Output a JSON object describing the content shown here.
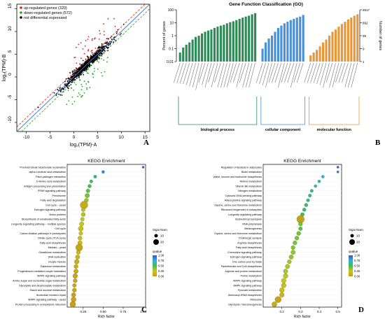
{
  "panels": [
    {
      "letter": "A"
    },
    {
      "letter": "B"
    },
    {
      "letter": "C"
    },
    {
      "letter": "D"
    }
  ],
  "chart_data": [
    {
      "id": "A",
      "type": "scatter",
      "title": "",
      "xlabel": "log₂(TPM)-A",
      "ylabel": "log₂(TPM)-B",
      "xlim": [
        -12,
        16
      ],
      "ylim": [
        -12,
        16
      ],
      "x_ticks": [
        "-10",
        "-5",
        "0",
        "5",
        "10",
        "15"
      ],
      "y_ticks": [
        "-10",
        "-5",
        "0",
        "5",
        "10",
        "15"
      ],
      "legend_position": "top-left",
      "series": [
        {
          "name": "up-regulated genes (320)",
          "color": "#e0201b"
        },
        {
          "name": "down-regulated genes (572)",
          "color": "#2ca02c"
        },
        {
          "name": "not differential expressed",
          "color": "#000000"
        }
      ],
      "diagonal": {
        "x": [
          -12,
          16
        ],
        "y": [
          -12,
          16
        ]
      },
      "fold_lines": {
        "offset": 1
      }
    },
    {
      "id": "B",
      "type": "bar",
      "title": "Gene Function Classification (GO)",
      "ylabel": "Percent of genes",
      "ylabel_right": "Number of genes",
      "y_scale": "log",
      "ylim": [
        0.01,
        100
      ],
      "y_ticks": [
        "100",
        "10",
        "1",
        "0.1",
        "0.01"
      ],
      "right_ticks": [
        "8917",
        "892",
        "89",
        "9",
        "1"
      ],
      "groups": [
        {
          "name": "biological process",
          "color": "#2e8b57",
          "values": [
            0.05,
            0.12,
            0.2,
            0.3,
            0.5,
            0.8,
            1,
            1.5,
            2,
            2.5,
            3,
            4,
            5,
            6,
            7,
            9,
            11,
            13,
            16,
            20,
            25,
            30,
            35,
            45,
            55
          ]
        },
        {
          "name": "cellular component",
          "color": "#4a90d9",
          "values": [
            0.1,
            0.3,
            0.6,
            1,
            2,
            4,
            6,
            9,
            12,
            16,
            20,
            25,
            30,
            40
          ]
        },
        {
          "name": "molecular function",
          "color": "#e8963a",
          "values": [
            0.03,
            0.05,
            0.08,
            0.15,
            0.3,
            0.5,
            1,
            2,
            3,
            5,
            8,
            12,
            18,
            25,
            35,
            45
          ]
        }
      ]
    },
    {
      "id": "C",
      "type": "scatter",
      "title": "KEGG Enrichment",
      "xlabel": "Rich factor",
      "x_ticks": [
        "0.25",
        "0.50",
        "0.75",
        "1.00"
      ],
      "xlim": [
        0.05,
        1.03
      ],
      "categories": [
        "Proximal tubule bicarbonate reclamation",
        "alpha-Linolenic acid metabolism",
        "Plant pathogen interaction",
        "D-Amino acid metabolism",
        "Antigen processing and presentation",
        "PPAR signaling pathway",
        "Peroxisome",
        "Fatty acid degradation",
        "Cell cycle – yeast",
        "Estrogen signaling pathway",
        "Motor proteins",
        "Biosynthesis of unsaturated fatty acids",
        "Longevity regulating pathway – multiple species",
        "Cell cycle",
        "Carbon fixation pathways in prokaryotes",
        "Citrate cycle (TCA cycle)",
        "Fatty acid biosynthesis",
        "Meiosis – yeast",
        "Glutathione metabolism",
        "DNA replication",
        "Oocyte meiosis",
        "Galactose metabolism",
        "Progesterone-mediated oocyte maturation",
        "MAPK signaling pathway",
        "Amino sugar and nucleotide sugar metabolism",
        "Glyoxylate and dicarboxylate metabolism",
        "Starch and sucrose metabolism",
        "Nucleotide excision repair",
        "MAPK signaling pathway – yeast",
        "Protein processing in endoplasmic reticulum"
      ],
      "values": [
        1.0,
        0.5,
        0.4,
        0.35,
        0.33,
        0.31,
        0.3,
        0.29,
        0.26,
        0.25,
        0.25,
        0.24,
        0.23,
        0.22,
        0.22,
        0.21,
        0.21,
        0.2,
        0.19,
        0.18,
        0.17,
        0.16,
        0.16,
        0.15,
        0.15,
        0.14,
        0.14,
        0.13,
        0.13,
        0.12
      ],
      "sizes": [
        3,
        5,
        6,
        6,
        7,
        8,
        10,
        9,
        20,
        8,
        9,
        8,
        10,
        12,
        8,
        9,
        10,
        18,
        9,
        10,
        11,
        9,
        10,
        11,
        9,
        8,
        9,
        10,
        12,
        14
      ],
      "qvalues": [
        0.95,
        0.85,
        0.6,
        0.55,
        0.5,
        0.45,
        0.4,
        0.35,
        0.1,
        0.3,
        0.3,
        0.28,
        0.25,
        0.2,
        0.22,
        0.2,
        0.18,
        0.05,
        0.15,
        0.15,
        0.12,
        0.1,
        0.1,
        0.08,
        0.08,
        0.06,
        0.06,
        0.05,
        0.05,
        0.03
      ],
      "size_legend": {
        "title": "Signi Num",
        "labels": [
          "10",
          "20"
        ]
      },
      "color_legend": {
        "title": "qvalue",
        "labels": [
          "1.00",
          "0.75",
          "0.50",
          "0.25",
          "0.00"
        ]
      }
    },
    {
      "id": "D",
      "type": "scatter",
      "title": "KEGG Enrichment",
      "xlabel": "Rich factor",
      "x_ticks": [
        "0.2",
        "0.3",
        "0.4",
        "0.5"
      ],
      "xlim": [
        0.1,
        0.52
      ],
      "categories": [
        "Regulation of lipolysis in adipocytes",
        "Biotin metabolism",
        "Valine, leucine and isoleucine biosynthesis",
        "Retinol metabolism",
        "Vitamin B6 metabolism",
        "Nitrogen metabolism",
        "Cytosolic DNA-sensing pathway",
        "Adipocytokine signaling pathway",
        "Glycine, serine and threonine metabolism",
        "Ribosome biogenesis in eukaryotes",
        "Longevity regulating pathway",
        "Sesbesteropl syrsspele",
        "RNA polymerase",
        "Melanogenesis",
        "Glycine, serine and threonine metabolism",
        "Cholinergic synapse",
        "Arginine biosynthesis",
        "Fatty acid biosynthesis",
        "Chemokine signaling pathway",
        "Estrogen signaling pathway",
        "One carbon pool by folate",
        "Pantothenate and CoA biosynthesis",
        "Arginine and proline metabolism",
        "Purine metabolism",
        "MAPK signaling pathway",
        "AMPK signaling pathway",
        "Pyruvate metabolism",
        "Aminoacyl-tRNA biosynthesis",
        "Ribosome",
        "Glycolysis / Gluconeogenesis"
      ],
      "values": [
        0.5,
        0.5,
        0.42,
        0.4,
        0.38,
        0.36,
        0.35,
        0.34,
        0.33,
        0.32,
        0.31,
        0.3,
        0.3,
        0.3,
        0.29,
        0.28,
        0.27,
        0.26,
        0.26,
        0.25,
        0.24,
        0.23,
        0.22,
        0.22,
        0.21,
        0.21,
        0.2,
        0.2,
        0.18,
        0.16
      ],
      "sizes": [
        3,
        3,
        5,
        5,
        5,
        6,
        6,
        6,
        7,
        7,
        8,
        20,
        9,
        8,
        9,
        9,
        9,
        9,
        10,
        10,
        9,
        10,
        10,
        11,
        11,
        11,
        11,
        11,
        16,
        12
      ],
      "qvalues": [
        0.95,
        0.9,
        0.75,
        0.7,
        0.7,
        0.65,
        0.62,
        0.6,
        0.58,
        0.55,
        0.5,
        0.05,
        0.4,
        0.45,
        0.4,
        0.4,
        0.38,
        0.36,
        0.35,
        0.35,
        0.32,
        0.3,
        0.3,
        0.28,
        0.25,
        0.22,
        0.2,
        0.15,
        0.05,
        0.1
      ],
      "size_legend": {
        "title": "Signi Num",
        "labels": [
          "10",
          "20"
        ]
      },
      "color_legend": {
        "title": "qvalue",
        "labels": [
          "1.00",
          "0.75",
          "0.50",
          "0.25",
          "0.00"
        ]
      }
    }
  ]
}
